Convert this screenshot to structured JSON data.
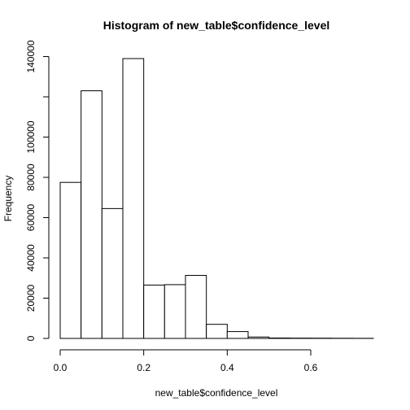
{
  "chart_data": {
    "type": "bar",
    "title": "Histogram of new_table$confidence_level",
    "xlabel": "new_table$confidence_level",
    "ylabel": "Frequency",
    "bin_width": 0.05,
    "bins": [
      {
        "x0": 0.0,
        "x1": 0.05,
        "count": 77500
      },
      {
        "x0": 0.05,
        "x1": 0.1,
        "count": 123000
      },
      {
        "x0": 0.1,
        "x1": 0.15,
        "count": 64500
      },
      {
        "x0": 0.15,
        "x1": 0.2,
        "count": 139000
      },
      {
        "x0": 0.2,
        "x1": 0.25,
        "count": 26500
      },
      {
        "x0": 0.25,
        "x1": 0.3,
        "count": 26700
      },
      {
        "x0": 0.3,
        "x1": 0.35,
        "count": 31300
      },
      {
        "x0": 0.35,
        "x1": 0.4,
        "count": 7000
      },
      {
        "x0": 0.4,
        "x1": 0.45,
        "count": 3400
      },
      {
        "x0": 0.45,
        "x1": 0.5,
        "count": 700
      },
      {
        "x0": 0.5,
        "x1": 0.55,
        "count": 200
      },
      {
        "x0": 0.55,
        "x1": 0.6,
        "count": 150
      },
      {
        "x0": 0.6,
        "x1": 0.65,
        "count": 120
      },
      {
        "x0": 0.65,
        "x1": 0.7,
        "count": 80
      },
      {
        "x0": 0.7,
        "x1": 0.75,
        "count": 50
      }
    ],
    "xlim": [
      0,
      0.75
    ],
    "ylim": [
      0,
      139000
    ],
    "x_ticks": [
      0.0,
      0.2,
      0.4,
      0.6
    ],
    "x_tick_labels": [
      "0.0",
      "0.2",
      "0.4",
      "0.6"
    ],
    "y_ticks": [
      0,
      20000,
      40000,
      60000,
      80000,
      100000,
      140000
    ],
    "y_tick_labels": [
      "0",
      "20000",
      "40000",
      "60000",
      "80000",
      "100000",
      "140000"
    ],
    "y_ticks_unlabeled": [
      120000
    ],
    "grid": false,
    "legend": "none"
  }
}
